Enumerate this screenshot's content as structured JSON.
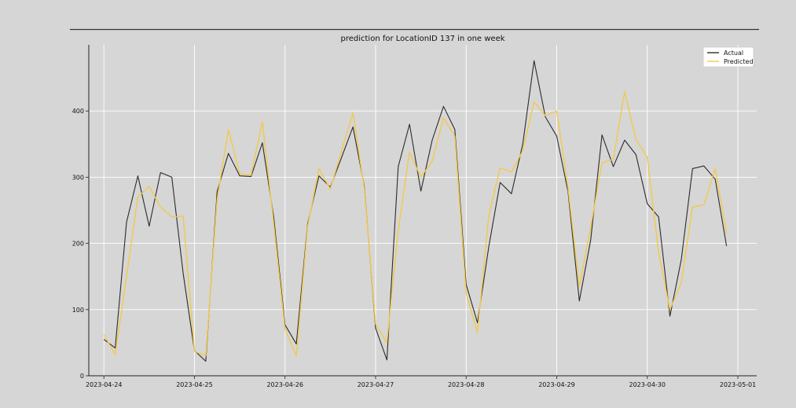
{
  "chart_data": {
    "type": "line",
    "title": "prediction for LocationID 137 in one week",
    "xlabel": "",
    "ylabel": "",
    "x_axis": "datetime",
    "xlim": [
      "2023-04-23T20:00",
      "2023-05-01T05:00"
    ],
    "ylim": [
      0,
      500
    ],
    "yticks": [
      0,
      100,
      200,
      300,
      400
    ],
    "xticks": [
      "2023-04-24",
      "2023-04-25",
      "2023-04-26",
      "2023-04-27",
      "2023-04-28",
      "2023-04-29",
      "2023-04-30",
      "2023-05-01"
    ],
    "grid": true,
    "legend_position": "upper-right",
    "x": [
      "2023-04-24T00:00",
      "2023-04-24T03:00",
      "2023-04-24T06:00",
      "2023-04-24T09:00",
      "2023-04-24T12:00",
      "2023-04-24T15:00",
      "2023-04-24T18:00",
      "2023-04-24T21:00",
      "2023-04-25T00:00",
      "2023-04-25T03:00",
      "2023-04-25T06:00",
      "2023-04-25T09:00",
      "2023-04-25T12:00",
      "2023-04-25T15:00",
      "2023-04-25T18:00",
      "2023-04-25T21:00",
      "2023-04-26T00:00",
      "2023-04-26T03:00",
      "2023-04-26T06:00",
      "2023-04-26T09:00",
      "2023-04-26T12:00",
      "2023-04-26T15:00",
      "2023-04-26T18:00",
      "2023-04-26T21:00",
      "2023-04-27T00:00",
      "2023-04-27T03:00",
      "2023-04-27T06:00",
      "2023-04-27T09:00",
      "2023-04-27T12:00",
      "2023-04-27T15:00",
      "2023-04-27T18:00",
      "2023-04-27T21:00",
      "2023-04-28T00:00",
      "2023-04-28T03:00",
      "2023-04-28T06:00",
      "2023-04-28T09:00",
      "2023-04-28T12:00",
      "2023-04-28T15:00",
      "2023-04-28T18:00",
      "2023-04-28T21:00",
      "2023-04-29T00:00",
      "2023-04-29T03:00",
      "2023-04-29T06:00",
      "2023-04-29T09:00",
      "2023-04-29T12:00",
      "2023-04-29T15:00",
      "2023-04-29T18:00",
      "2023-04-29T21:00",
      "2023-04-30T00:00",
      "2023-04-30T03:00",
      "2023-04-30T06:00",
      "2023-04-30T09:00",
      "2023-04-30T12:00",
      "2023-04-30T15:00",
      "2023-04-30T18:00",
      "2023-04-30T21:00"
    ],
    "series": [
      {
        "name": "Actual",
        "color": "#2b2b2b",
        "values": [
          55,
          42,
          232,
          302,
          226,
          307,
          300,
          155,
          38,
          22,
          278,
          336,
          302,
          301,
          352,
          240,
          77,
          48,
          230,
          302,
          285,
          330,
          376,
          287,
          72,
          24,
          316,
          380,
          279,
          356,
          407,
          372,
          138,
          80,
          195,
          292,
          275,
          350,
          476,
          391,
          362,
          278,
          113,
          205,
          364,
          316,
          356,
          334,
          260,
          240,
          90,
          175,
          313,
          317,
          297,
          196
        ]
      },
      {
        "name": "Predicted",
        "color": "#f2c94c",
        "values": [
          62,
          32,
          150,
          270,
          286,
          255,
          240,
          241,
          37,
          30,
          266,
          372,
          305,
          303,
          384,
          230,
          70,
          30,
          226,
          313,
          282,
          340,
          397,
          283,
          78,
          50,
          220,
          338,
          300,
          324,
          390,
          362,
          125,
          65,
          242,
          314,
          308,
          340,
          414,
          393,
          400,
          284,
          135,
          224,
          322,
          327,
          429,
          357,
          330,
          186,
          100,
          140,
          255,
          258,
          313,
          215
        ]
      }
    ]
  }
}
